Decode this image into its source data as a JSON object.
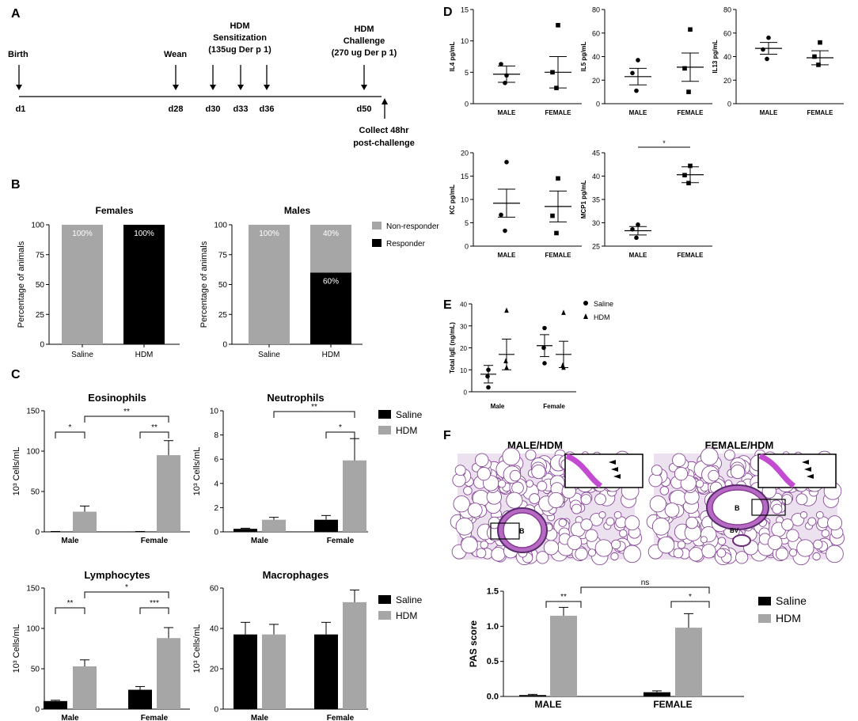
{
  "panel_letters": [
    "A",
    "B",
    "C",
    "D",
    "E",
    "F"
  ],
  "timeline": {
    "events": [
      {
        "label": "Birth",
        "day": "d1"
      },
      {
        "label": "Wean",
        "day": "d28"
      },
      {
        "label": "HDM Sensitization (135ug Der p 1)",
        "day": "d30"
      },
      {
        "label": "",
        "day": "d33"
      },
      {
        "label": "",
        "day": "d36"
      },
      {
        "label": "HDM Challenge (270 ug Der p 1)",
        "day": "d50"
      }
    ],
    "sensitization_line1": "HDM",
    "sensitization_line2": "Sensitization",
    "sensitization_line3": "(135ug Der p 1)",
    "challenge_line1": "HDM",
    "challenge_line2": "Challenge",
    "challenge_line3": "(270 ug Der p 1)",
    "collect_line1": "Collect 48hr",
    "collect_line2": "post-challenge"
  },
  "colors": {
    "saline": "#000000",
    "hdm": "#a6a6a6",
    "nonresponder": "#a6a6a6",
    "responder": "#000000"
  },
  "chart_data": [
    {
      "id": "B-females",
      "type": "bar",
      "title": "Females",
      "ylabel": "Percentage of animals",
      "ylim": [
        0,
        100
      ],
      "yticks": [
        0,
        25,
        50,
        75,
        100
      ],
      "categories": [
        "Saline",
        "HDM"
      ],
      "series": [
        {
          "name": "Responder",
          "values": [
            0,
            100
          ]
        },
        {
          "name": "Non-responder",
          "values": [
            100,
            0
          ]
        }
      ],
      "data_labels": [
        "100%",
        "100%"
      ]
    },
    {
      "id": "B-males",
      "type": "bar",
      "title": "Males",
      "ylabel": "Percentage of animals",
      "ylim": [
        0,
        100
      ],
      "yticks": [
        0,
        25,
        50,
        75,
        100
      ],
      "categories": [
        "Saline",
        "HDM"
      ],
      "series": [
        {
          "name": "Responder",
          "values": [
            0,
            60
          ]
        },
        {
          "name": "Non-responder",
          "values": [
            100,
            40
          ]
        }
      ],
      "data_labels": [
        "100%",
        "40%",
        "60%"
      ],
      "legend": [
        "Non-responder",
        "Responder"
      ]
    },
    {
      "id": "C-eos",
      "type": "bar",
      "title": "Eosinophils",
      "ylabel": "10³ Cells/mL",
      "ylim": [
        0,
        150
      ],
      "yticks": [
        0,
        50,
        100,
        150
      ],
      "categories": [
        "Male",
        "Female"
      ],
      "series": [
        {
          "name": "Saline",
          "values": [
            0.5,
            0.5
          ],
          "err": [
            0,
            0
          ]
        },
        {
          "name": "HDM",
          "values": [
            25,
            95
          ],
          "err": [
            7,
            18
          ]
        }
      ],
      "significance": [
        "*",
        "**",
        "**"
      ]
    },
    {
      "id": "C-neu",
      "type": "bar",
      "title": "Neutrophils",
      "ylabel": "10³ Cells/mL",
      "ylim": [
        0,
        10
      ],
      "yticks": [
        0,
        2,
        4,
        6,
        8,
        10
      ],
      "categories": [
        "Male",
        "Female"
      ],
      "series": [
        {
          "name": "Saline",
          "values": [
            0.25,
            1.0
          ],
          "err": [
            0.05,
            0.35
          ]
        },
        {
          "name": "HDM",
          "values": [
            1.0,
            5.9
          ],
          "err": [
            0.2,
            1.8
          ]
        }
      ],
      "significance": [
        "**",
        "*"
      ],
      "legend": [
        "Saline",
        "HDM"
      ]
    },
    {
      "id": "C-lym",
      "type": "bar",
      "title": "Lymphocytes",
      "ylabel": "10³ Cells/mL",
      "ylim": [
        0,
        150
      ],
      "yticks": [
        0,
        50,
        100,
        150
      ],
      "categories": [
        "Male",
        "Female"
      ],
      "series": [
        {
          "name": "Saline",
          "values": [
            10,
            24
          ],
          "err": [
            1,
            4
          ]
        },
        {
          "name": "HDM",
          "values": [
            53,
            88
          ],
          "err": [
            8,
            13
          ]
        }
      ],
      "significance": [
        "**",
        "*",
        "***"
      ]
    },
    {
      "id": "C-mac",
      "type": "bar",
      "title": "Macrophages",
      "ylabel": "10³ Cells/mL",
      "ylim": [
        0,
        60
      ],
      "yticks": [
        0,
        20,
        40,
        60
      ],
      "categories": [
        "Male",
        "Female"
      ],
      "series": [
        {
          "name": "Saline",
          "values": [
            37,
            37
          ],
          "err": [
            6,
            6
          ]
        },
        {
          "name": "HDM",
          "values": [
            37,
            53
          ],
          "err": [
            5,
            6
          ]
        }
      ],
      "legend": [
        "Saline",
        "HDM"
      ]
    },
    {
      "id": "D-il4",
      "type": "scatter",
      "ylabel": "IL4 pg/mL",
      "ylim": [
        0,
        15
      ],
      "yticks": [
        0,
        5,
        10,
        15
      ],
      "categories": [
        "MALE",
        "FEMALE"
      ],
      "points": [
        [
          4.5,
          6.3,
          3.3
        ],
        [
          12.5,
          5.0,
          2.5
        ]
      ],
      "mean": [
        4.7,
        5.0
      ],
      "sem": [
        1.3,
        2.5
      ],
      "markers": [
        "circle",
        "square"
      ]
    },
    {
      "id": "D-il5",
      "type": "scatter",
      "ylabel": "IL5 pg/mL",
      "ylim": [
        0,
        80
      ],
      "yticks": [
        0,
        20,
        40,
        60,
        80
      ],
      "categories": [
        "MALE",
        "FEMALE"
      ],
      "points": [
        [
          37,
          26,
          11
        ],
        [
          63,
          30,
          10
        ]
      ],
      "mean": [
        23,
        31
      ],
      "sem": [
        7,
        12
      ],
      "markers": [
        "circle",
        "square"
      ]
    },
    {
      "id": "D-il13",
      "type": "scatter",
      "ylabel": "IL13 pg/mL",
      "ylim": [
        0,
        80
      ],
      "yticks": [
        0,
        20,
        40,
        60,
        80
      ],
      "categories": [
        "MALE",
        "FEMALE"
      ],
      "points": [
        [
          56,
          46,
          38
        ],
        [
          52,
          40,
          33
        ]
      ],
      "mean": [
        47,
        39
      ],
      "sem": [
        5,
        6
      ],
      "markers": [
        "circle",
        "square"
      ]
    },
    {
      "id": "D-kc",
      "type": "scatter",
      "ylabel": "KC pg/mL",
      "ylim": [
        0,
        20
      ],
      "yticks": [
        0,
        5,
        10,
        15,
        20
      ],
      "categories": [
        "MALE",
        "FEMALE"
      ],
      "points": [
        [
          18,
          6.7,
          3.3
        ],
        [
          14.5,
          6.5,
          2.8
        ]
      ],
      "mean": [
        9.2,
        8.5
      ],
      "sem": [
        3,
        3.3
      ],
      "markers": [
        "circle",
        "square"
      ]
    },
    {
      "id": "D-mcp1",
      "type": "scatter",
      "ylabel": "MCP1 pg/mL",
      "ylim": [
        25,
        45
      ],
      "yticks": [
        25,
        30,
        35,
        40,
        45
      ],
      "categories": [
        "MALE",
        "FEMALE"
      ],
      "points": [
        [
          29.6,
          28.6,
          26.8
        ],
        [
          42.2,
          40.2,
          38.5
        ]
      ],
      "mean": [
        28.3,
        40.3
      ],
      "sem": [
        0.9,
        1.7
      ],
      "markers": [
        "circle",
        "square"
      ],
      "significance": [
        "*"
      ]
    },
    {
      "id": "E-ige",
      "type": "scatter",
      "ylabel": "Total IgE (ng/mL)",
      "ylim": [
        0,
        40
      ],
      "yticks": [
        0,
        10,
        20,
        30,
        40
      ],
      "categories": [
        "Male",
        "Female"
      ],
      "series": [
        {
          "name": "Saline",
          "points": [
            [
              10,
              7,
              2
            ],
            [
              29,
              20,
              13
            ]
          ],
          "mean": [
            8,
            21
          ],
          "sem": [
            4,
            5
          ]
        },
        {
          "name": "HDM",
          "points": [
            [
              37,
              14,
              11
            ],
            [
              36,
              12,
              11
            ]
          ],
          "mean": [
            17,
            17
          ],
          "sem": [
            7,
            6
          ]
        }
      ],
      "legend": [
        "Saline",
        "HDM"
      ]
    },
    {
      "id": "F-pas",
      "type": "bar",
      "ylabel": "PAS score",
      "ylim": [
        0,
        1.5
      ],
      "yticks": [
        "0.0",
        "0.5",
        "1.0",
        "1.5"
      ],
      "categories": [
        "MALE",
        "FEMALE"
      ],
      "series": [
        {
          "name": "Saline",
          "values": [
            0.02,
            0.06
          ],
          "err": [
            0.01,
            0.02
          ]
        },
        {
          "name": "HDM",
          "values": [
            1.15,
            0.98
          ],
          "err": [
            0.12,
            0.2
          ]
        }
      ],
      "significance": [
        "**",
        "ns",
        "*"
      ],
      "legend": [
        "Saline",
        "HDM"
      ]
    }
  ],
  "histology": {
    "left_title": "MALE/HDM",
    "right_title": "FEMALE/HDM",
    "bronchus_label": "B",
    "vessel_label": "BV"
  }
}
